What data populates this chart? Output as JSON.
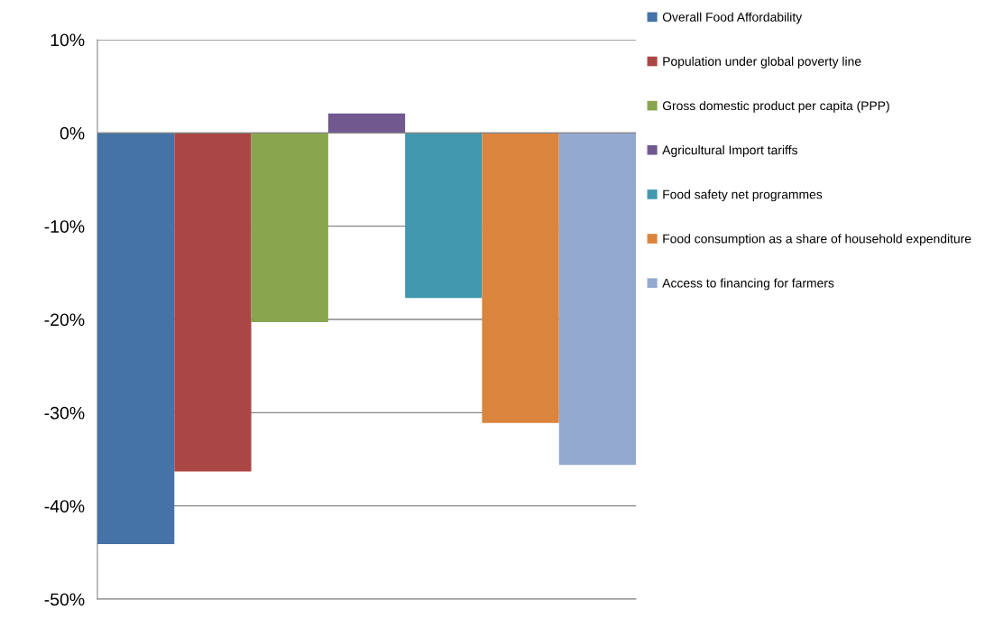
{
  "chart_data": {
    "type": "bar",
    "categories": [
      null
    ],
    "series": [
      {
        "name": "Overall Food Affordability",
        "color": "#4572a7",
        "values": [
          -44.1
        ]
      },
      {
        "name": "Population under global poverty line",
        "color": "#aa4643",
        "values": [
          -36.3
        ]
      },
      {
        "name": "Gross domestic product per capita (PPP)",
        "color": "#89a54e",
        "values": [
          -20.3
        ]
      },
      {
        "name": "Agricultural Import tariffs",
        "color": "#71588f",
        "values": [
          2.1
        ]
      },
      {
        "name": "Food safety net programmes",
        "color": "#4198af",
        "values": [
          -17.7
        ]
      },
      {
        "name": "Food consumption as a share of household expenditure",
        "color": "#db843d",
        "values": [
          -31.1
        ]
      },
      {
        "name": "Access to financing for farmers",
        "color": "#93a9cf",
        "values": [
          -35.6
        ]
      }
    ],
    "ylim": [
      -50,
      10
    ],
    "yticks": [
      {
        "value": -50,
        "label": "-50%"
      },
      {
        "value": -40,
        "label": "-40%"
      },
      {
        "value": -30,
        "label": "-30%"
      },
      {
        "value": -20,
        "label": "-20%"
      },
      {
        "value": -10,
        "label": "-10%"
      },
      {
        "value": 0,
        "label": "0%"
      },
      {
        "value": 10,
        "label": "10%"
      }
    ],
    "grid": "y",
    "legend": "right"
  }
}
